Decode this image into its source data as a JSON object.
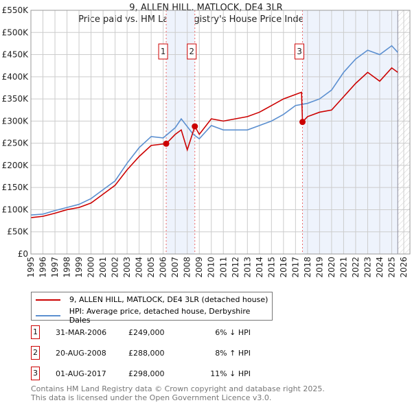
{
  "title": "9, ALLEN HILL, MATLOCK, DE4 3LR",
  "subtitle": "Price paid vs. HM Land Registry's House Price Index (HPI)",
  "chart_data": {
    "type": "line",
    "title": "9, ALLEN HILL, MATLOCK, DE4 3LR",
    "xlim": [
      1995,
      2026
    ],
    "ylim": [
      0,
      550000
    ],
    "xticks": [
      "1995",
      "1996",
      "1997",
      "1998",
      "1999",
      "2000",
      "2001",
      "2002",
      "2003",
      "2004",
      "2005",
      "2006",
      "2007",
      "2008",
      "2009",
      "2010",
      "2011",
      "2012",
      "2013",
      "2014",
      "2015",
      "2016",
      "2017",
      "2018",
      "2019",
      "2020",
      "2021",
      "2022",
      "2023",
      "2024",
      "2025",
      "2026"
    ],
    "yticks": [
      "£0",
      "£50K",
      "£100K",
      "£150K",
      "£200K",
      "£250K",
      "£300K",
      "£350K",
      "£400K",
      "£450K",
      "£500K",
      "£550K"
    ],
    "series": [
      {
        "name": "9, ALLEN HILL, MATLOCK, DE4 3LR (detached house)",
        "color": "#cc0000",
        "x": [
          1995,
          1996,
          1997,
          1998,
          1999,
          2000,
          2001,
          2002,
          2003,
          2004,
          2005,
          2006.25,
          2007,
          2007.5,
          2008,
          2008.63,
          2009,
          2010,
          2011,
          2012,
          2013,
          2014,
          2015,
          2016,
          2017.5,
          2017.58,
          2018,
          2019,
          2020,
          2021,
          2022,
          2023,
          2024,
          2025,
          2025.5
        ],
        "y": [
          82000,
          85000,
          92000,
          100000,
          105000,
          115000,
          135000,
          155000,
          190000,
          220000,
          245000,
          249000,
          270000,
          280000,
          235000,
          288000,
          270000,
          305000,
          300000,
          305000,
          310000,
          320000,
          335000,
          350000,
          365000,
          298000,
          310000,
          320000,
          325000,
          355000,
          385000,
          410000,
          390000,
          420000,
          410000
        ]
      },
      {
        "name": "HPI: Average price, detached house, Derbyshire Dales",
        "color": "#5b8fd0",
        "x": [
          1995,
          1996,
          1997,
          1998,
          1999,
          2000,
          2001,
          2002,
          2003,
          2004,
          2005,
          2006,
          2007,
          2007.5,
          2008.5,
          2009,
          2010,
          2011,
          2012,
          2013,
          2014,
          2015,
          2016,
          2017,
          2018,
          2019,
          2020,
          2021,
          2022,
          2023,
          2024,
          2025,
          2025.5
        ],
        "y": [
          88000,
          90000,
          98000,
          105000,
          112000,
          125000,
          145000,
          165000,
          205000,
          240000,
          265000,
          262000,
          285000,
          305000,
          270000,
          260000,
          290000,
          280000,
          280000,
          280000,
          290000,
          300000,
          315000,
          335000,
          340000,
          350000,
          370000,
          410000,
          440000,
          460000,
          450000,
          470000,
          455000
        ]
      }
    ],
    "sales": [
      {
        "label": "1",
        "x": 2006.25,
        "y": 249000,
        "date": "31-MAR-2006",
        "price": "£249,000",
        "hpi": "6% ↓ HPI"
      },
      {
        "label": "2",
        "x": 2008.63,
        "y": 288000,
        "date": "20-AUG-2008",
        "price": "£288,000",
        "hpi": "8% ↑ HPI"
      },
      {
        "label": "3",
        "x": 2017.58,
        "y": 298000,
        "date": "01-AUG-2017",
        "price": "£298,000",
        "hpi": "11% ↓ HPI"
      }
    ]
  },
  "footer": [
    "Contains HM Land Registry data © Crown copyright and database right 2025.",
    "This data is licensed under the Open Government Licence v3.0."
  ]
}
